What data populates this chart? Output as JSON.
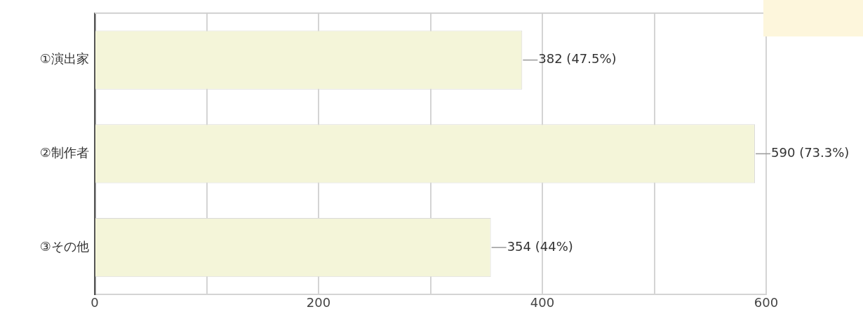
{
  "chart_data": {
    "type": "bar",
    "orientation": "horizontal",
    "categories": [
      "①演出家",
      "②制作者",
      "③その他"
    ],
    "values": [
      382,
      590,
      354
    ],
    "color": "#f4f5d9",
    "value_labels": [
      "382 (47.5%)",
      "590 (73.3%)",
      "354 (44%)"
    ],
    "xlim": [
      0,
      600
    ],
    "xticks": [
      0,
      {
        "value": 100,
        "label": null
      },
      200,
      {
        "value": 300,
        "label": null
      },
      400,
      {
        "value": 500,
        "label": null
      },
      600
    ],
    "grid": "x"
  }
}
